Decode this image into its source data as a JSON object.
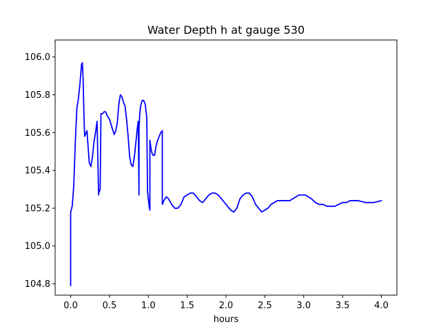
{
  "chart_data": {
    "type": "line",
    "title": "Water Depth h at gauge 530",
    "xlabel": "hours",
    "ylabel": "",
    "xlim": [
      -0.2,
      4.2
    ],
    "ylim": [
      104.74,
      106.09
    ],
    "grid": false,
    "legend": "none",
    "xticks": [
      0.0,
      0.5,
      1.0,
      1.5,
      2.0,
      2.5,
      3.0,
      3.5,
      4.0
    ],
    "xtick_labels": [
      "0.0",
      "0.5",
      "1.0",
      "1.5",
      "2.0",
      "2.5",
      "3.0",
      "3.5",
      "4.0"
    ],
    "yticks": [
      104.8,
      105.0,
      105.2,
      105.4,
      105.6,
      105.8,
      106.0
    ],
    "ytick_labels": [
      "104.8",
      "105.0",
      "105.2",
      "105.4",
      "105.6",
      "105.8",
      "106.0"
    ],
    "series": [
      {
        "color": "#0000ff",
        "x": [
          0.0,
          0.0,
          0.02,
          0.04,
          0.06,
          0.08,
          0.1,
          0.12,
          0.14,
          0.15,
          0.16,
          0.17,
          0.18,
          0.19,
          0.2,
          0.21,
          0.22,
          0.24,
          0.26,
          0.28,
          0.3,
          0.32,
          0.34,
          0.36,
          0.36,
          0.38,
          0.39,
          0.39,
          0.41,
          0.43,
          0.45,
          0.47,
          0.5,
          0.53,
          0.56,
          0.58,
          0.6,
          0.62,
          0.64,
          0.66,
          0.68,
          0.7,
          0.72,
          0.74,
          0.76,
          0.78,
          0.8,
          0.82,
          0.84,
          0.86,
          0.87,
          0.88,
          0.88,
          0.89,
          0.9,
          0.92,
          0.94,
          0.96,
          0.98,
          0.99,
          0.99,
          1.0,
          1.01,
          1.02,
          1.02,
          1.04,
          1.06,
          1.08,
          1.1,
          1.12,
          1.14,
          1.16,
          1.18,
          1.18,
          1.2,
          1.23,
          1.26,
          1.3,
          1.34,
          1.38,
          1.42,
          1.46,
          1.5,
          1.54,
          1.58,
          1.62,
          1.66,
          1.7,
          1.74,
          1.78,
          1.82,
          1.86,
          1.9,
          1.94,
          1.98,
          2.02,
          2.06,
          2.1,
          2.14,
          2.18,
          2.22,
          2.26,
          2.3,
          2.34,
          2.38,
          2.42,
          2.46,
          2.5,
          2.54,
          2.58,
          2.62,
          2.66,
          2.7,
          2.74,
          2.78,
          2.82,
          2.86,
          2.9,
          2.94,
          2.98,
          3.02,
          3.06,
          3.1,
          3.15,
          3.2,
          3.25,
          3.3,
          3.35,
          3.4,
          3.45,
          3.5,
          3.55,
          3.6,
          3.7,
          3.8,
          3.9,
          4.0
        ],
        "y": [
          104.79,
          105.18,
          105.21,
          105.32,
          105.55,
          105.73,
          105.78,
          105.86,
          105.96,
          105.97,
          105.89,
          105.71,
          105.58,
          105.59,
          105.6,
          105.61,
          105.55,
          105.44,
          105.42,
          105.47,
          105.55,
          105.6,
          105.66,
          105.27,
          105.28,
          105.3,
          105.7,
          105.7,
          105.7,
          105.71,
          105.71,
          105.69,
          105.67,
          105.63,
          105.59,
          105.61,
          105.65,
          105.75,
          105.8,
          105.79,
          105.76,
          105.74,
          105.67,
          105.58,
          105.47,
          105.43,
          105.42,
          105.47,
          105.55,
          105.63,
          105.66,
          105.27,
          105.62,
          105.7,
          105.74,
          105.77,
          105.77,
          105.75,
          105.68,
          105.28,
          105.29,
          105.25,
          105.21,
          105.19,
          105.56,
          105.5,
          105.48,
          105.48,
          105.53,
          105.56,
          105.58,
          105.6,
          105.61,
          105.22,
          105.24,
          105.26,
          105.25,
          105.22,
          105.2,
          105.2,
          105.22,
          105.26,
          105.27,
          105.28,
          105.28,
          105.26,
          105.24,
          105.23,
          105.25,
          105.27,
          105.28,
          105.28,
          105.27,
          105.25,
          105.23,
          105.21,
          105.19,
          105.18,
          105.2,
          105.25,
          105.27,
          105.28,
          105.28,
          105.26,
          105.22,
          105.2,
          105.18,
          105.19,
          105.2,
          105.22,
          105.23,
          105.24,
          105.24,
          105.24,
          105.24,
          105.24,
          105.25,
          105.26,
          105.27,
          105.27,
          105.27,
          105.26,
          105.25,
          105.23,
          105.22,
          105.22,
          105.21,
          105.21,
          105.21,
          105.22,
          105.23,
          105.23,
          105.24,
          105.24,
          105.23,
          105.23,
          105.24
        ]
      }
    ]
  }
}
